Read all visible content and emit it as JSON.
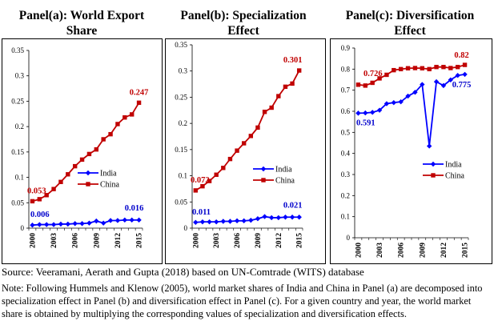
{
  "colors": {
    "india": "#0000ff",
    "china": "#c00000",
    "label_red": "#c00000",
    "label_blue": "#0000cc"
  },
  "chart_data": [
    {
      "type": "line",
      "title": "Panel(a): World Export Share",
      "title_lines": [
        "Panel(a): World Export",
        "Share"
      ],
      "ylim": [
        0,
        0.35
      ],
      "yticks": [
        0,
        0.05,
        0.1,
        0.15,
        0.2,
        0.25,
        0.3,
        0.35
      ],
      "ytick_labels": [
        "0",
        "0.05",
        "0.1",
        "0.15",
        "0.2",
        "0.25",
        "0.3",
        "0.35"
      ],
      "x": [
        2000,
        2001,
        2002,
        2003,
        2004,
        2005,
        2006,
        2007,
        2008,
        2009,
        2010,
        2011,
        2012,
        2013,
        2014,
        2015
      ],
      "xtick_labels": [
        "2000",
        "2003",
        "2006",
        "2009",
        "2012",
        "2015"
      ],
      "legend": [
        "India",
        "China"
      ],
      "series": [
        {
          "name": "India",
          "values": [
            0.006,
            0.007,
            0.007,
            0.007,
            0.008,
            0.008,
            0.009,
            0.009,
            0.01,
            0.014,
            0.01,
            0.015,
            0.015,
            0.016,
            0.016,
            0.016
          ]
        },
        {
          "name": "China",
          "values": [
            0.053,
            0.057,
            0.065,
            0.077,
            0.091,
            0.106,
            0.122,
            0.135,
            0.146,
            0.155,
            0.175,
            0.185,
            0.205,
            0.218,
            0.224,
            0.247
          ]
        }
      ],
      "annotations": {
        "india_start": "0.006",
        "india_end": "0.016",
        "china_start": "0.053",
        "china_end": "0.247"
      }
    },
    {
      "type": "line",
      "title": "Panel(b): Specialization Effect",
      "title_lines": [
        "Panel(b): Specialization",
        "Effect"
      ],
      "ylim": [
        0,
        0.35
      ],
      "yticks": [
        0,
        0.05,
        0.1,
        0.15,
        0.2,
        0.25,
        0.3,
        0.35
      ],
      "ytick_labels": [
        "0",
        "0.05",
        "0.1",
        "0.15",
        "0.2",
        "0.25",
        "0.3",
        "0.35"
      ],
      "x": [
        2000,
        2001,
        2002,
        2003,
        2004,
        2005,
        2006,
        2007,
        2008,
        2009,
        2010,
        2011,
        2012,
        2013,
        2014,
        2015
      ],
      "xtick_labels": [
        "2000",
        "2003",
        "2006",
        "2009",
        "2012",
        "2015"
      ],
      "legend": [
        "India",
        "China"
      ],
      "series": [
        {
          "name": "India",
          "values": [
            0.011,
            0.012,
            0.012,
            0.012,
            0.013,
            0.013,
            0.014,
            0.014,
            0.015,
            0.018,
            0.022,
            0.02,
            0.02,
            0.021,
            0.021,
            0.021
          ]
        },
        {
          "name": "China",
          "values": [
            0.072,
            0.08,
            0.09,
            0.102,
            0.115,
            0.132,
            0.148,
            0.162,
            0.176,
            0.192,
            0.222,
            0.23,
            0.252,
            0.27,
            0.276,
            0.301
          ]
        }
      ],
      "annotations": {
        "india_start": "0.011",
        "india_end": "0.021",
        "china_start": "0.072",
        "china_end": "0.301"
      }
    },
    {
      "type": "line",
      "title": "Panel(c): Diversification Effect",
      "title_lines": [
        "Panel(c): Diversification",
        "Effect"
      ],
      "ylim": [
        0,
        0.9
      ],
      "yticks": [
        0,
        0.1,
        0.2,
        0.3,
        0.4,
        0.5,
        0.6,
        0.7,
        0.8,
        0.9
      ],
      "ytick_labels": [
        "0",
        "0.1",
        "0.2",
        "0.3",
        "0.4",
        "0.5",
        "0.6",
        "0.7",
        "0.8",
        "0.9"
      ],
      "x": [
        2000,
        2001,
        2002,
        2003,
        2004,
        2005,
        2006,
        2007,
        2008,
        2009,
        2010,
        2011,
        2012,
        2013,
        2014,
        2015
      ],
      "xtick_labels": [
        "2000",
        "2003",
        "2006",
        "2009",
        "2012",
        "2015"
      ],
      "legend": [
        "India",
        "China"
      ],
      "series": [
        {
          "name": "India",
          "values": [
            0.591,
            0.592,
            0.595,
            0.605,
            0.636,
            0.641,
            0.645,
            0.672,
            0.69,
            0.727,
            0.435,
            0.74,
            0.722,
            0.749,
            0.77,
            0.775
          ]
        },
        {
          "name": "China",
          "values": [
            0.726,
            0.722,
            0.735,
            0.756,
            0.773,
            0.795,
            0.8,
            0.804,
            0.805,
            0.804,
            0.8,
            0.81,
            0.81,
            0.805,
            0.81,
            0.82
          ]
        }
      ],
      "annotations": {
        "india_start": "0.591",
        "india_end": "0.775",
        "china_start": "0.726",
        "china_end": "0.82"
      }
    }
  ],
  "footer": {
    "source": "Source: Veeramani, Aerath and Gupta (2018) based on UN-Comtrade (WITS) database",
    "note": "Note: Following Hummels and Klenow (2005), world market shares of India and China in Panel (a) are decomposed into specialization effect in Panel (b) and diversification effect in Panel (c).  For a given country and year, the world market share is obtained by multiplying the corresponding values of specialization and diversification effects."
  }
}
